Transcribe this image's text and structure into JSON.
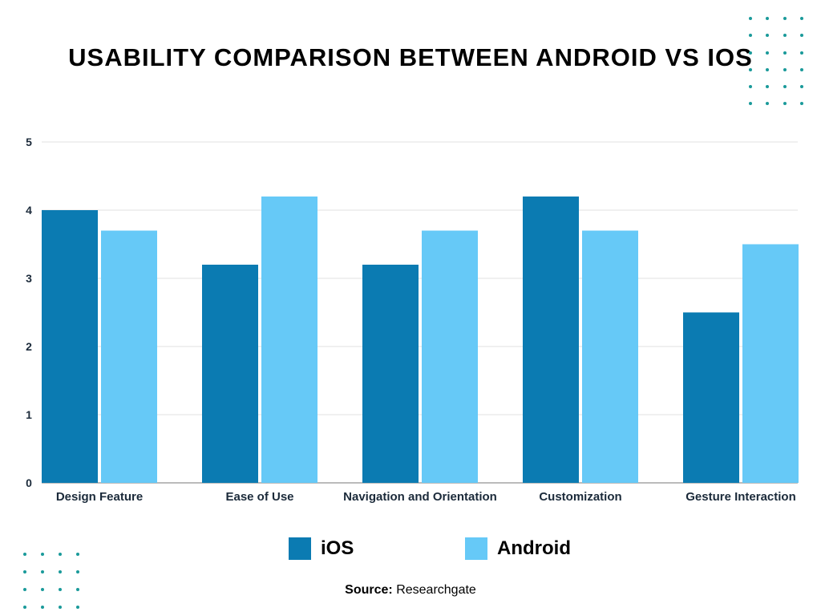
{
  "chart_data": {
    "type": "bar",
    "title": "USABILITY COMPARISON BETWEEN ANDROID VS IOS",
    "categories": [
      "Design Feature",
      "Ease of Use",
      "Navigation and Orientation",
      "Customization",
      "Gesture Interaction"
    ],
    "series": [
      {
        "name": "iOS",
        "color": "#0b7bb2",
        "values": [
          4.0,
          3.2,
          3.2,
          4.2,
          2.5
        ]
      },
      {
        "name": "Android",
        "color": "#66c9f7",
        "values": [
          3.7,
          4.2,
          3.7,
          3.7,
          3.5
        ]
      }
    ],
    "ylim": [
      0,
      5
    ],
    "yticks": [
      "0",
      "1",
      "2",
      "3",
      "4",
      "5"
    ],
    "grid": true,
    "legend": "bottom",
    "xlabel": "",
    "ylabel": ""
  },
  "source": {
    "label": "Source:",
    "value": "Researchgate"
  },
  "decoration": {
    "dot_color": "#1a9a9a"
  }
}
